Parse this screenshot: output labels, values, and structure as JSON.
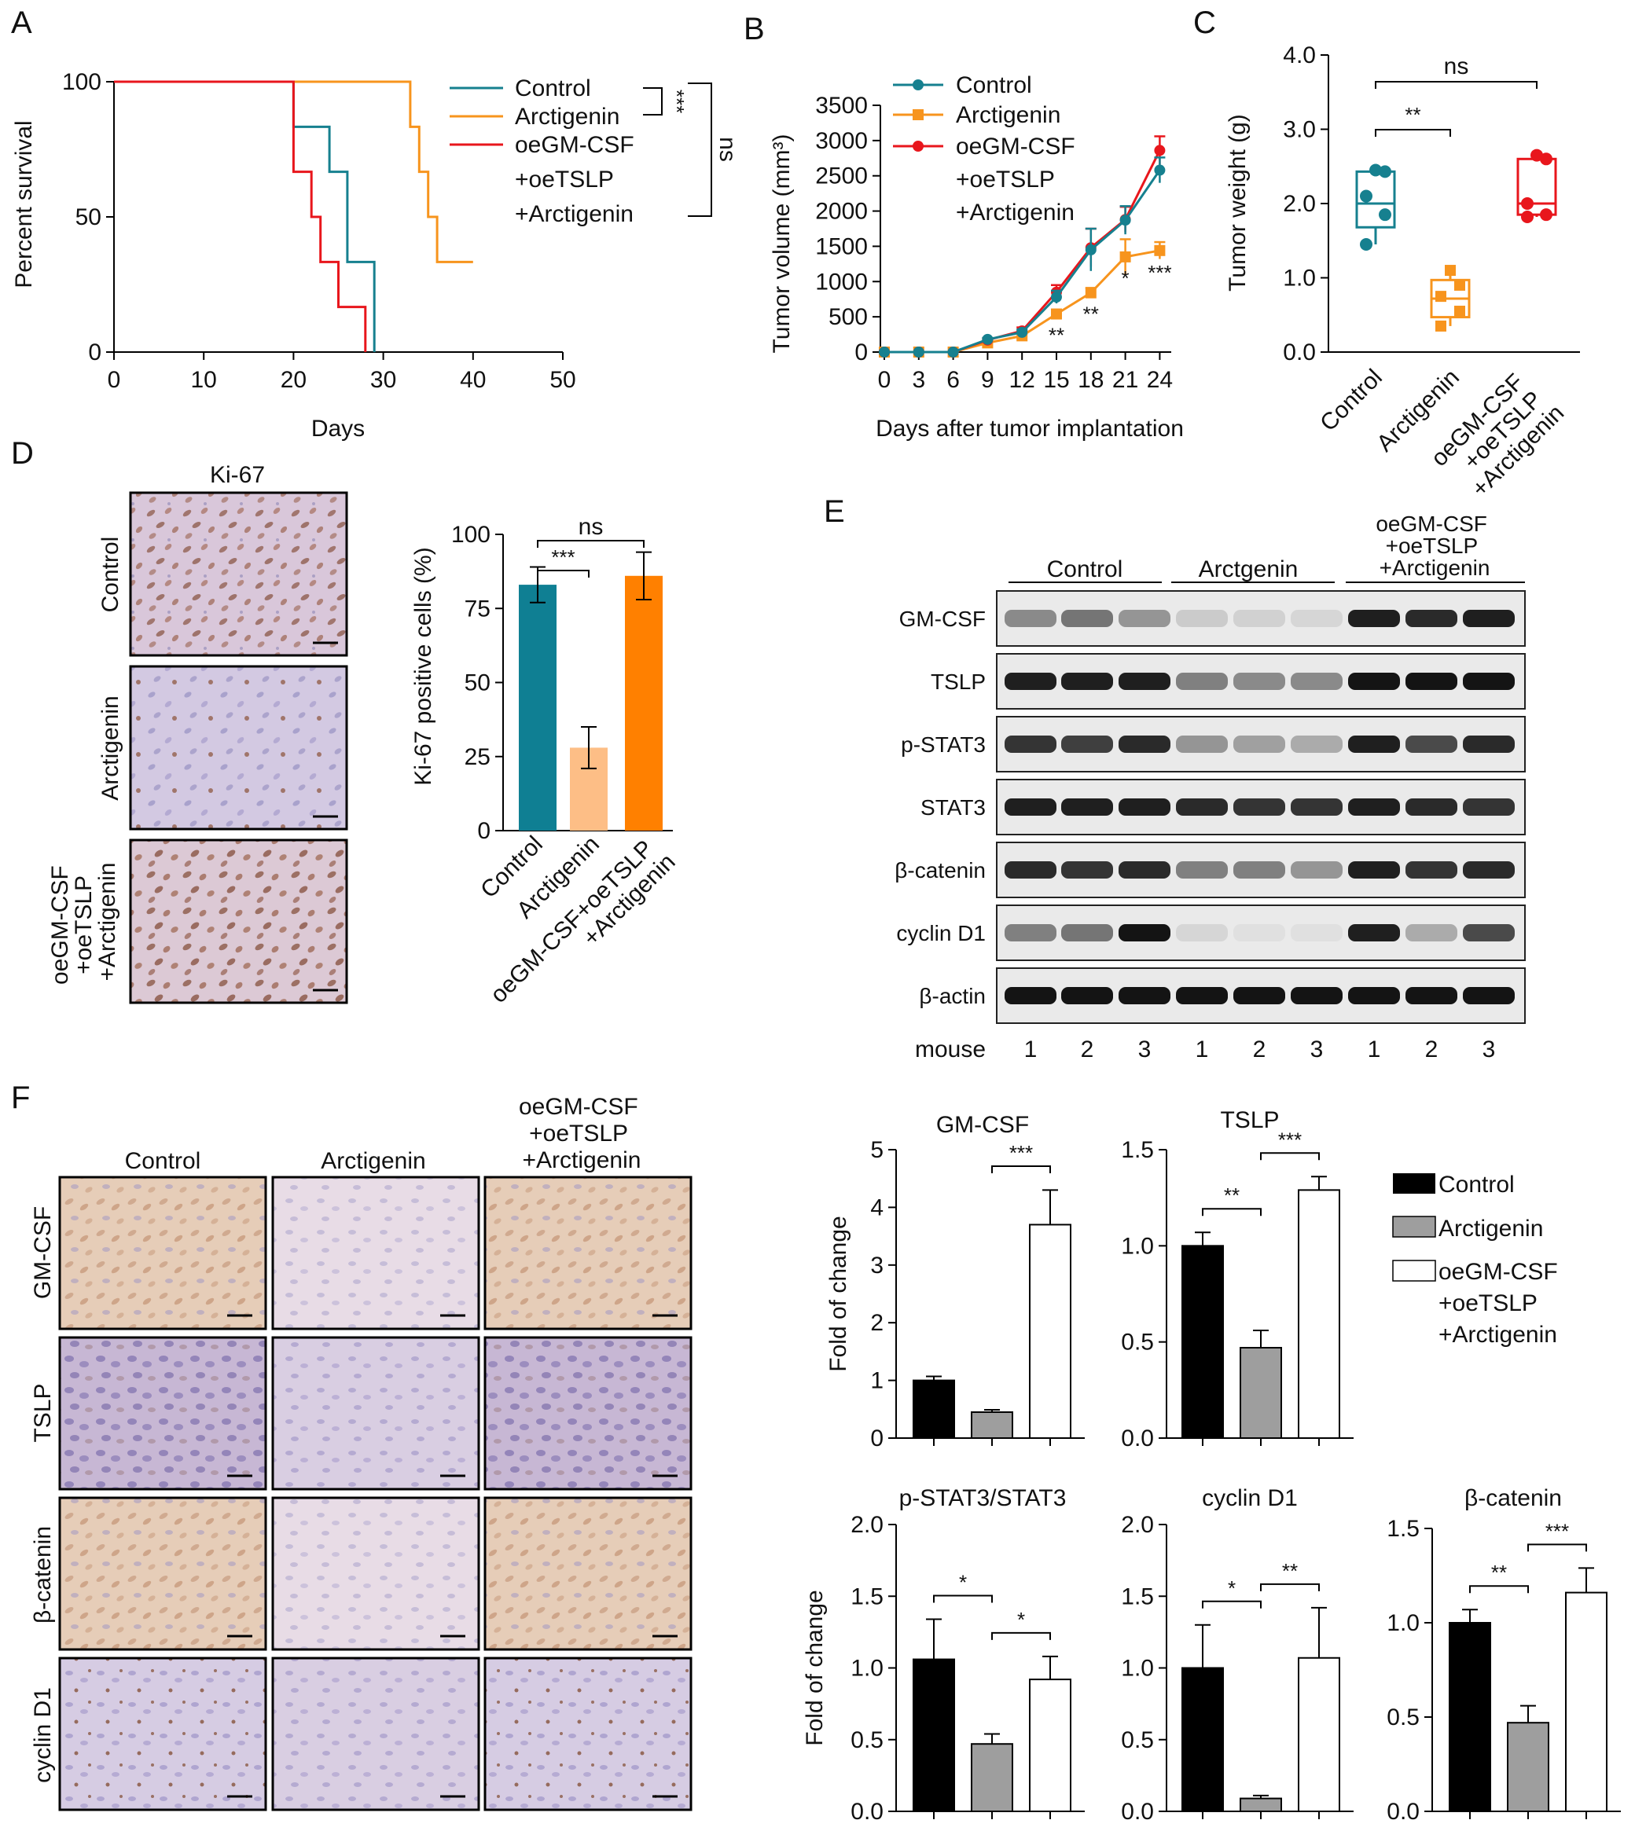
{
  "colors": {
    "control": "#16808F",
    "arctigenin": "#F7941D",
    "oe": "#E8161C",
    "control_bar": "#0F7F93",
    "arctigenin_bar": "#FDBE86",
    "oe_bar": "#FF8000",
    "black": "#000000",
    "grey": "#9E9E9E",
    "white": "#FFFFFF",
    "tissue": "#D8C9DE",
    "brown": "#B98562"
  },
  "panel_letters": [
    "A",
    "B",
    "C",
    "D",
    "E",
    "F"
  ],
  "panel_A": {
    "chart_data": {
      "type": "line",
      "xlabel": "Days",
      "ylabel": "Percent survival",
      "xlim": [
        0,
        50
      ],
      "ylim": [
        0,
        100
      ],
      "x_ticks": [
        "0",
        "10",
        "20",
        "30",
        "40",
        "50"
      ],
      "y_ticks": [
        "0",
        "50",
        "100"
      ],
      "series": [
        {
          "name": "Control",
          "steps": [
            [
              0,
              100
            ],
            [
              20,
              100
            ],
            [
              20,
              83.3
            ],
            [
              24,
              83.3
            ],
            [
              24,
              66.7
            ],
            [
              26,
              66.7
            ],
            [
              26,
              33.3
            ],
            [
              29,
              33.3
            ],
            [
              29,
              0
            ]
          ]
        },
        {
          "name": "Arctigenin",
          "steps": [
            [
              0,
              100
            ],
            [
              33,
              100
            ],
            [
              33,
              83.3
            ],
            [
              34,
              83.3
            ],
            [
              34,
              66.7
            ],
            [
              35,
              66.7
            ],
            [
              35,
              50
            ],
            [
              36,
              50
            ],
            [
              36,
              33.3
            ],
            [
              40,
              33.3
            ]
          ]
        },
        {
          "name": "oeGM-CSF\n+oeTSLP\n+Arctigenin",
          "steps": [
            [
              0,
              100
            ],
            [
              20,
              100
            ],
            [
              20,
              66.7
            ],
            [
              22,
              66.7
            ],
            [
              22,
              50
            ],
            [
              23,
              50
            ],
            [
              23,
              33.3
            ],
            [
              25,
              33.3
            ],
            [
              25,
              16.7
            ],
            [
              28,
              16.7
            ],
            [
              28,
              0
            ]
          ]
        }
      ],
      "legend_position": "top-right",
      "annotations": [
        "***",
        "ns"
      ]
    }
  },
  "panel_B": {
    "chart_data": {
      "type": "line",
      "xlabel": "Days after tumor implantation",
      "ylabel": "Tumor volume (mm³)",
      "x": [
        0,
        3,
        6,
        9,
        12,
        15,
        18,
        21,
        24
      ],
      "ylim": [
        0,
        3500
      ],
      "y_ticks": [
        "0",
        "500",
        "1000",
        "1500",
        "2000",
        "2500",
        "3000",
        "3500"
      ],
      "series": [
        {
          "name": "Control",
          "values": [
            0,
            0,
            0,
            180,
            280,
            780,
            1450,
            1870,
            2580
          ],
          "errors": [
            0,
            0,
            0,
            20,
            40,
            90,
            300,
            200,
            180
          ]
        },
        {
          "name": "Arctigenin",
          "values": [
            0,
            0,
            0,
            130,
            230,
            540,
            840,
            1350,
            1440
          ],
          "errors": [
            0,
            0,
            0,
            20,
            30,
            60,
            70,
            250,
            120
          ]
        },
        {
          "name": "oeGM-CSF\n+oeTSLP\n+Arctigenin",
          "values": [
            0,
            0,
            0,
            170,
            300,
            850,
            1480,
            1880,
            2860
          ],
          "errors": [
            0,
            0,
            0,
            20,
            50,
            100,
            270,
            180,
            200
          ]
        }
      ],
      "significance": [
        {
          "x": 15,
          "label": "**"
        },
        {
          "x": 18,
          "label": "**"
        },
        {
          "x": 21,
          "label": "*"
        },
        {
          "x": 24,
          "label": "***"
        }
      ],
      "legend_position": "top-left"
    }
  },
  "panel_C": {
    "chart_data": {
      "type": "box",
      "ylabel": "Tumor weight (g)",
      "ylim": [
        0,
        4.0
      ],
      "y_ticks": [
        "0.0",
        "1.0",
        "2.0",
        "3.0",
        "4.0"
      ],
      "categories": [
        "Control",
        "Arctigenin",
        "oeGM-CSF\n+oeTSLP\n+Arctigenin"
      ],
      "boxes": [
        {
          "q1": 1.68,
          "median": 2.0,
          "q3": 2.43,
          "points": [
            1.45,
            1.85,
            2.1,
            2.43,
            2.45
          ]
        },
        {
          "q1": 0.47,
          "median": 0.72,
          "q3": 0.97,
          "points": [
            0.35,
            0.55,
            0.75,
            0.9,
            1.1
          ]
        },
        {
          "q1": 1.85,
          "median": 2.0,
          "q3": 2.6,
          "points": [
            1.82,
            1.85,
            2.0,
            2.6,
            2.65
          ]
        }
      ],
      "brackets": [
        {
          "from": 0,
          "to": 1,
          "label": "**"
        },
        {
          "from": 0,
          "to": 2,
          "label": "ns"
        }
      ]
    }
  },
  "panel_D": {
    "title": "Ki-67",
    "row_labels": [
      "Control",
      "Arctigenin",
      "oeGM-CSF\n+oeTSLP\n+Arctigenin"
    ],
    "chart_data": {
      "type": "bar",
      "ylabel": "Ki-67 positive cells (%)",
      "ylim": [
        0,
        100
      ],
      "y_ticks": [
        "0",
        "25",
        "50",
        "75",
        "100"
      ],
      "categories": [
        "Control",
        "Arctigenin",
        "oeGM-CSF+oeTSLP\n+Arctigenin"
      ],
      "values": [
        83,
        28,
        86
      ],
      "errors": [
        6,
        7,
        8
      ],
      "brackets": [
        {
          "from": 0,
          "to": 1,
          "label": "***"
        },
        {
          "from": 0,
          "to": 2,
          "label": "ns"
        }
      ]
    }
  },
  "panel_E": {
    "groups": [
      "Control",
      "Arctgenin",
      "oeGM-CSF\n+oeTSLP\n+Arctigenin"
    ],
    "rows": [
      {
        "label": "GM-CSF",
        "intensity": [
          0.45,
          0.55,
          0.4,
          0.15,
          0.12,
          0.1,
          0.95,
          0.9,
          0.95
        ]
      },
      {
        "label": "TSLP",
        "intensity": [
          0.95,
          0.95,
          0.95,
          0.5,
          0.45,
          0.45,
          1,
          1,
          1
        ]
      },
      {
        "label": "p-STAT3",
        "intensity": [
          0.85,
          0.8,
          0.9,
          0.4,
          0.35,
          0.3,
          0.95,
          0.75,
          0.9
        ]
      },
      {
        "label": "STAT3",
        "intensity": [
          0.95,
          0.95,
          0.95,
          0.9,
          0.85,
          0.85,
          0.95,
          0.9,
          0.85
        ]
      },
      {
        "label": "β-catenin",
        "intensity": [
          0.9,
          0.85,
          0.9,
          0.5,
          0.5,
          0.4,
          0.95,
          0.85,
          0.9
        ]
      },
      {
        "label": "cyclin D1",
        "intensity": [
          0.5,
          0.55,
          1,
          0.1,
          0.05,
          0.05,
          0.95,
          0.3,
          0.75
        ]
      },
      {
        "label": "β-actin",
        "intensity": [
          1,
          1,
          1,
          1,
          1,
          1,
          1,
          1,
          1
        ]
      }
    ],
    "mouse_label": "mouse",
    "lanes": [
      "1",
      "2",
      "3",
      "1",
      "2",
      "3",
      "1",
      "2",
      "3"
    ]
  },
  "panel_F": {
    "col_labels": [
      "Control",
      "Arctigenin",
      "oeGM-CSF\n+oeTSLP\n+Arctigenin"
    ],
    "row_labels": [
      "GM-CSF",
      "TSLP",
      "β-catenin",
      "cyclin D1"
    ],
    "legend": [
      "Control",
      "Arctigenin",
      "oeGM-CSF\n+oeTSLP\n+Arctigenin"
    ],
    "chart_data": [
      {
        "type": "bar",
        "title": "GM-CSF",
        "ylabel": "Fold of change",
        "ylim": [
          0,
          5
        ],
        "y_ticks": [
          "0",
          "1",
          "2",
          "3",
          "4",
          "5"
        ],
        "values": [
          1.0,
          0.45,
          3.7
        ],
        "errors": [
          0.07,
          0.04,
          0.6
        ],
        "brackets": [
          {
            "from": 1,
            "to": 2,
            "label": "***"
          }
        ]
      },
      {
        "type": "bar",
        "title": "TSLP",
        "ylabel": "",
        "ylim": [
          0,
          1.5
        ],
        "y_ticks": [
          "0.0",
          "0.5",
          "1.0",
          "1.5"
        ],
        "values": [
          1.0,
          0.47,
          1.29
        ],
        "errors": [
          0.07,
          0.09,
          0.07
        ],
        "brackets": [
          {
            "from": 0,
            "to": 1,
            "label": "**"
          },
          {
            "from": 1,
            "to": 2,
            "label": "***"
          }
        ]
      },
      {
        "type": "bar",
        "title": "p-STAT3/STAT3",
        "ylabel": "Fold of change",
        "ylim": [
          0,
          2.0
        ],
        "y_ticks": [
          "0.0",
          "0.5",
          "1.0",
          "1.5",
          "2.0"
        ],
        "values": [
          1.06,
          0.47,
          0.92
        ],
        "errors": [
          0.28,
          0.07,
          0.16
        ],
        "brackets": [
          {
            "from": 0,
            "to": 1,
            "label": "*"
          },
          {
            "from": 1,
            "to": 2,
            "label": "*"
          }
        ]
      },
      {
        "type": "bar",
        "title": "cyclin D1",
        "ylabel": "",
        "ylim": [
          0,
          2.0
        ],
        "y_ticks": [
          "0.0",
          "0.5",
          "1.0",
          "1.5",
          "2.0"
        ],
        "values": [
          1.0,
          0.09,
          1.07
        ],
        "errors": [
          0.3,
          0.02,
          0.35
        ],
        "brackets": [
          {
            "from": 0,
            "to": 1,
            "label": "*"
          },
          {
            "from": 1,
            "to": 2,
            "label": "**"
          }
        ]
      },
      {
        "type": "bar",
        "title": "β-catenin",
        "ylabel": "",
        "ylim": [
          0,
          1.5
        ],
        "y_ticks": [
          "0.0",
          "0.5",
          "1.0",
          "1.5"
        ],
        "values": [
          1.0,
          0.47,
          1.16
        ],
        "errors": [
          0.07,
          0.09,
          0.13
        ],
        "brackets": [
          {
            "from": 0,
            "to": 1,
            "label": "**"
          },
          {
            "from": 1,
            "to": 2,
            "label": "***"
          }
        ]
      }
    ]
  }
}
